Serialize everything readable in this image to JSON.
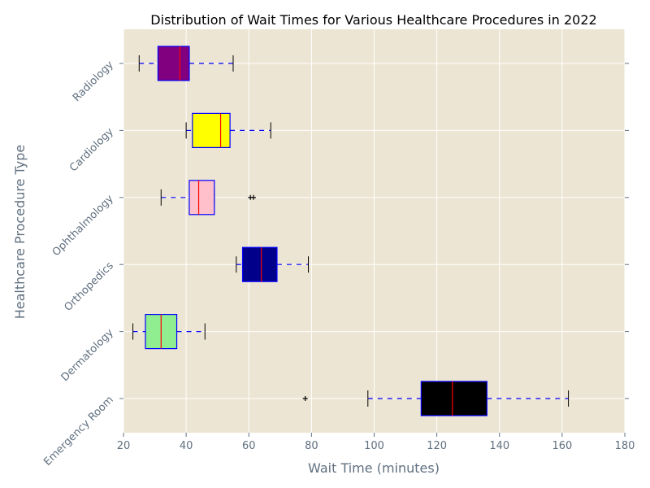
{
  "chart_data": {
    "type": "boxplot",
    "orientation": "horizontal",
    "title": "Distribution of Wait Times for Various Healthcare Procedures in 2022",
    "xlabel": "Wait Time (minutes)",
    "ylabel": "Healthcare Procedure Type",
    "xlim": [
      20,
      180
    ],
    "xticks": [
      20,
      40,
      60,
      80,
      100,
      120,
      140,
      160,
      180
    ],
    "grid": true,
    "background": "#ede5d3",
    "categories": [
      "Emergency Room",
      "Dermatology",
      "Orthopedics",
      "Ophthalmology",
      "Cardiology",
      "Radiology"
    ],
    "boxes": [
      {
        "label": "Emergency Room",
        "whisker_low": 98,
        "q1": 115,
        "median": 125,
        "q3": 136,
        "whisker_high": 162,
        "outliers": [
          78
        ],
        "color": "#000000"
      },
      {
        "label": "Dermatology",
        "whisker_low": 23,
        "q1": 27,
        "median": 32,
        "q3": 37,
        "whisker_high": 46,
        "outliers": [],
        "color": "#90ee90"
      },
      {
        "label": "Orthopedics",
        "whisker_low": 56,
        "q1": 58,
        "median": 64,
        "q3": 69,
        "whisker_high": 79,
        "outliers": [],
        "color": "#00008b"
      },
      {
        "label": "Ophthalmology",
        "whisker_low": 32,
        "q1": 41,
        "median": 44,
        "q3": 49,
        "whisker_high": 49,
        "outliers": [
          60.5,
          61.5
        ],
        "color": "#ffc0cb"
      },
      {
        "label": "Cardiology",
        "whisker_low": 40,
        "q1": 42,
        "median": 51,
        "q3": 54,
        "whisker_high": 67,
        "outliers": [],
        "color": "#ffff00"
      },
      {
        "label": "Radiology",
        "whisker_low": 25,
        "q1": 31,
        "median": 38,
        "q3": 41,
        "whisker_high": 55,
        "outliers": [],
        "color": "#800080"
      }
    ],
    "box_edge_color": "#0000ff",
    "median_color": "#ff0000",
    "whisker_color": "#0000ff",
    "cap_color": "#000000"
  }
}
